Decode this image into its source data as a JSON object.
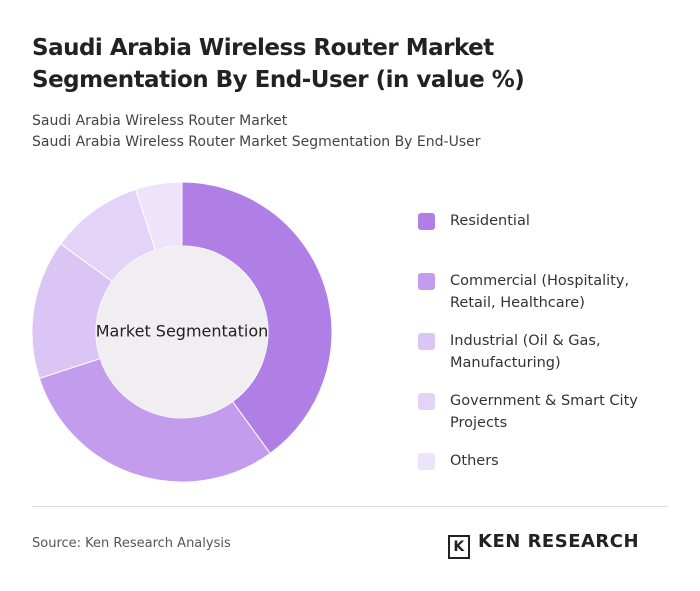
{
  "chart_data": {
    "type": "donut",
    "title": "Saudi Arabia Wireless Router Market Segmentation By End-User (in value %)",
    "subtitle": [
      "Saudi Arabia Wireless Router Market",
      "Saudi Arabia Wireless Router Market Segmentation By End-User"
    ],
    "center_label": "Market Segmentation",
    "categories": [
      "Residential",
      "Commercial (Hospitality, Retail, Healthcare)",
      "Industrial (Oil & Gas, Manufacturing)",
      "Government & Smart City Projects",
      "Others"
    ],
    "values": [
      40,
      30,
      15,
      10,
      5
    ],
    "colors": [
      "#b07fe6",
      "#c39cee",
      "#dbc5f5",
      "#e3d3f7",
      "#ede3fa"
    ],
    "source": "Source: Ken Research Analysis",
    "logo": "KEN RESEARCH"
  }
}
